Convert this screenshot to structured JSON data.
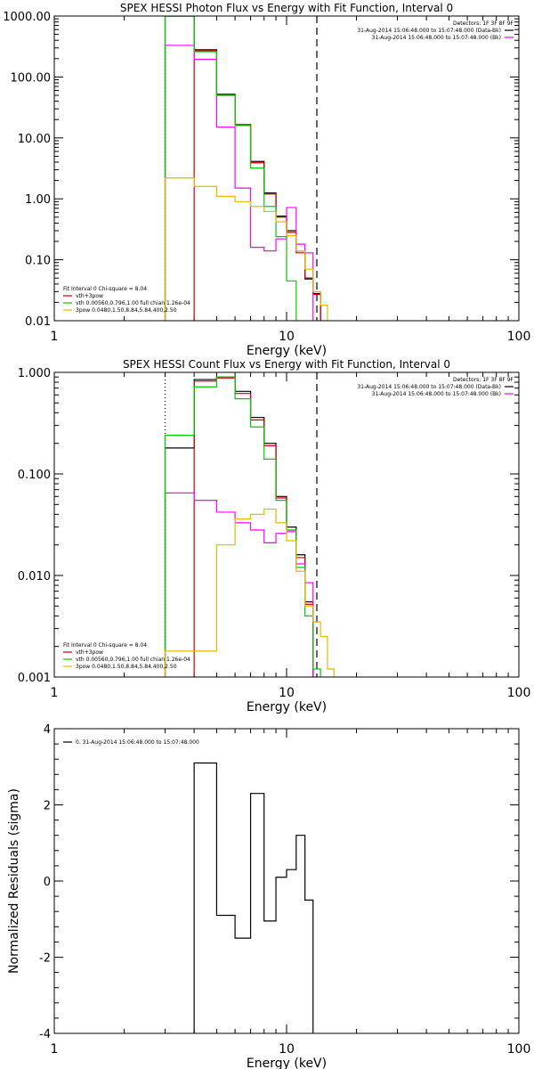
{
  "chart_data": [
    {
      "type": "line",
      "title": "SPEX HESSI Photon Flux vs Energy with Fit Function, Interval 0",
      "xlabel": "Energy (keV)",
      "ylabel": "",
      "xscale": "log",
      "yscale": "log",
      "xlim": [
        1,
        100
      ],
      "ylim": [
        0.01,
        1000
      ],
      "x_ticks": [
        "1",
        "10",
        "100"
      ],
      "y_ticks": [
        "0.01",
        "0.10",
        "1.00",
        "10.00",
        "100.00",
        "1000.00"
      ],
      "grid": false,
      "legend_top_right": [
        "Detectors: 1F 3F 8F 9F",
        "31-Aug-2014 15:06:48.000 to 15:07:48.000 (Data-Bk)",
        "31-Aug-2014 15:06:48.000 to 15:07:48.000 (Bk)"
      ],
      "legend_bottom_left": [
        "Fit Interval 0   Chi-square = 8.04",
        "vth+3pow",
        "vth 0.00560,0.796,1.00   full chian 1.26e-04",
        "3pow 0.0480,1.50,8.84,5.84,400,2.50"
      ],
      "edges": [
        3,
        4,
        5,
        6,
        7,
        8,
        9,
        10,
        11,
        12,
        13,
        14,
        15,
        16,
        17,
        18
      ],
      "vlines": [
        {
          "x": 3,
          "style": "dotted",
          "color": "#000000"
        },
        {
          "x": 13.5,
          "style": "dashed",
          "color": "#000000"
        }
      ],
      "series": [
        {
          "color": "#000000",
          "values": [
            1000,
            280,
            52,
            16.5,
            4.1,
            1.25,
            0.52,
            0.3,
            0.14,
            0.05,
            0.028,
            null,
            null,
            null,
            null
          ]
        },
        {
          "color": "#cc0000",
          "values": [
            null,
            270,
            50,
            16,
            3.9,
            1.2,
            0.5,
            0.28,
            0.13,
            0.048,
            0.027,
            null,
            null,
            null,
            null
          ]
        },
        {
          "color": "#ff00ff",
          "values": [
            330,
            195,
            15,
            1.5,
            0.16,
            0.14,
            0.22,
            0.72,
            0.18,
            0.13,
            null,
            null,
            null,
            null,
            null
          ]
        },
        {
          "color": "#00cc00",
          "values": [
            1000,
            260,
            50,
            16,
            3.2,
            0.75,
            0.24,
            0.045,
            0.002,
            null,
            null,
            null,
            null,
            null,
            null
          ]
        },
        {
          "color": "#e6b800",
          "values": [
            2.2,
            1.6,
            1.1,
            0.9,
            0.75,
            0.62,
            0.42,
            0.25,
            0.14,
            0.07,
            0.03,
            0.018,
            0.01,
            null,
            null
          ]
        }
      ]
    },
    {
      "type": "line",
      "title": "SPEX HESSI Count Flux vs Energy with Fit Function, Interval 0",
      "xlabel": "Energy (keV)",
      "ylabel": "",
      "xscale": "log",
      "yscale": "log",
      "xlim": [
        1,
        100
      ],
      "ylim": [
        0.001,
        1
      ],
      "x_ticks": [
        "1",
        "10",
        "100"
      ],
      "y_ticks": [
        "0.001",
        "0.010",
        "0.100",
        "1.000"
      ],
      "grid": false,
      "legend_top_right": [
        "Detectors: 1F 3F 8F 9F",
        "31-Aug-2014 15:06:48.000 to 15:07:48.000 (Data-Bk)",
        "31-Aug-2014 15:06:48.000 to 15:07:48.000 (Bk)"
      ],
      "legend_bottom_left": [
        "Fit Interval 0   Chi-square = 8.04",
        "vth+3pow",
        "vth 0.00560,0.796,1.00   full chian 1.26e-04",
        "3pow 0.0480,1.50,8.84,5.84,400,2.50"
      ],
      "edges": [
        3,
        4,
        5,
        6,
        7,
        8,
        9,
        10,
        11,
        12,
        13,
        14,
        15,
        16,
        17,
        18
      ],
      "vlines": [
        {
          "x": 3,
          "style": "dotted",
          "color": "#000000"
        },
        {
          "x": 13.5,
          "style": "dashed",
          "color": "#000000"
        }
      ],
      "series": [
        {
          "color": "#000000",
          "values": [
            0.18,
            0.85,
            0.9,
            0.65,
            0.36,
            0.2,
            0.06,
            0.03,
            0.016,
            0.0055,
            null,
            null,
            null,
            null,
            null
          ]
        },
        {
          "color": "#cc0000",
          "values": [
            null,
            0.82,
            0.88,
            0.62,
            0.34,
            0.19,
            0.058,
            0.028,
            0.015,
            0.0052,
            null,
            null,
            null,
            null,
            null
          ]
        },
        {
          "color": "#ff00ff",
          "values": [
            0.065,
            0.055,
            0.042,
            0.033,
            0.028,
            0.021,
            0.026,
            0.027,
            0.013,
            0.0085,
            0.001,
            null,
            null,
            null,
            null
          ]
        },
        {
          "color": "#00cc00",
          "values": [
            0.24,
            0.72,
            0.9,
            0.55,
            0.29,
            0.14,
            0.055,
            0.028,
            0.012,
            0.004,
            0.0012,
            null,
            null,
            null,
            null
          ]
        },
        {
          "color": "#e6b800",
          "values": [
            0.0018,
            0.0018,
            0.02,
            0.036,
            0.04,
            0.045,
            0.033,
            0.022,
            0.011,
            0.005,
            0.0035,
            0.0025,
            0.0012,
            0.001,
            null
          ]
        }
      ]
    },
    {
      "type": "line",
      "title": "",
      "xlabel": "Energy (keV)",
      "ylabel": "Normalized Residuals (sigma)",
      "xscale": "log",
      "yscale": "linear",
      "xlim": [
        1,
        100
      ],
      "ylim": [
        -4,
        4
      ],
      "x_ticks": [
        "1",
        "10",
        "100"
      ],
      "y_ticks": [
        "-4",
        "-2",
        "0",
        "2",
        "4"
      ],
      "grid": false,
      "legend_top_left": [
        "0. 31-Aug-2014 15:06:48.000 to 15:07:48.000"
      ],
      "edges": [
        3,
        4,
        5,
        6,
        7,
        8,
        9,
        10,
        11,
        12,
        13,
        14
      ],
      "series": [
        {
          "color": "#000000",
          "values": [
            -4,
            3.1,
            -0.9,
            -1.5,
            2.3,
            -1.05,
            0.1,
            0.3,
            1.2,
            -0.5,
            -4
          ]
        }
      ]
    }
  ]
}
